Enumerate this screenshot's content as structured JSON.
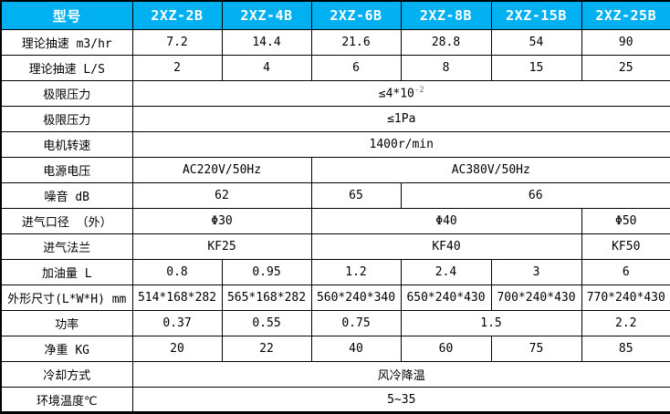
{
  "colors": {
    "header_bg": "#00B0F0",
    "header_text": "#FFFFFF",
    "border": "#000000",
    "cell_bg": "#FFFFFF",
    "body_text": "#000000",
    "superscript_text": "#777777"
  },
  "header": {
    "label": "型号",
    "models": [
      "2XZ-2B",
      "2XZ-4B",
      "2XZ-6B",
      "2XZ-8B",
      "2XZ-15B",
      "2XZ-25B"
    ]
  },
  "rows": [
    {
      "label": "理论抽速 m3/hr",
      "cells": [
        {
          "text": "7.2"
        },
        {
          "text": "14.4"
        },
        {
          "text": "21.6"
        },
        {
          "text": "28.8"
        },
        {
          "text": "54"
        },
        {
          "text": "90"
        }
      ]
    },
    {
      "label": "理论抽速 L/S",
      "cells": [
        {
          "text": "2"
        },
        {
          "text": "4"
        },
        {
          "text": "6"
        },
        {
          "text": "8"
        },
        {
          "text": "15"
        },
        {
          "text": "25"
        }
      ]
    },
    {
      "label": "极限压力",
      "cells": [
        {
          "text": "≤4*10",
          "sup": "-2",
          "span": 6
        }
      ]
    },
    {
      "label": "极限压力",
      "cells": [
        {
          "text": "≤1Pa",
          "span": 6
        }
      ]
    },
    {
      "label": "电机转速",
      "cells": [
        {
          "text": "1400r/min",
          "span": 6
        }
      ]
    },
    {
      "label": "电源电压",
      "cells": [
        {
          "text": "AC220V/50Hz",
          "span": 2,
          "align": "left"
        },
        {
          "text": "AC380V/50Hz",
          "span": 4
        }
      ]
    },
    {
      "label": "噪音 dB",
      "cells": [
        {
          "text": "62",
          "span": 2
        },
        {
          "text": "65"
        },
        {
          "text": "66",
          "span": 3
        }
      ]
    },
    {
      "label": "进气口径 （外）",
      "cells": [
        {
          "text": "Φ30",
          "span": 2
        },
        {
          "text": "Φ40",
          "span": 3
        },
        {
          "text": "Φ50"
        }
      ]
    },
    {
      "label": "进气法兰",
      "cells": [
        {
          "text": "KF25",
          "span": 2
        },
        {
          "text": "KF40",
          "span": 3
        },
        {
          "text": "KF50"
        }
      ]
    },
    {
      "label": "加油量 L",
      "cells": [
        {
          "text": "0.8"
        },
        {
          "text": "0.95"
        },
        {
          "text": "1.2"
        },
        {
          "text": "2.4"
        },
        {
          "text": "3"
        },
        {
          "text": "6"
        }
      ]
    },
    {
      "label": "外形尺寸(L*W*H) mm",
      "cells": [
        {
          "text": "514*168*282"
        },
        {
          "text": "565*168*282"
        },
        {
          "text": "560*240*340"
        },
        {
          "text": "650*240*430"
        },
        {
          "text": "700*240*430"
        },
        {
          "text": "770*240*430"
        }
      ]
    },
    {
      "label": "功率",
      "cells": [
        {
          "text": "0.37"
        },
        {
          "text": "0.55"
        },
        {
          "text": "0.75"
        },
        {
          "text": "1.5",
          "span": 2
        },
        {
          "text": "2.2"
        }
      ]
    },
    {
      "label": "净重 KG",
      "cells": [
        {
          "text": "20"
        },
        {
          "text": "22"
        },
        {
          "text": "40"
        },
        {
          "text": "60"
        },
        {
          "text": "75"
        },
        {
          "text": "85"
        }
      ]
    },
    {
      "label": "冷却方式",
      "cells": [
        {
          "text": "风冷降温",
          "span": 6
        }
      ]
    },
    {
      "label": "环境温度℃",
      "cells": [
        {
          "text": "5~35",
          "span": 6
        }
      ]
    }
  ]
}
